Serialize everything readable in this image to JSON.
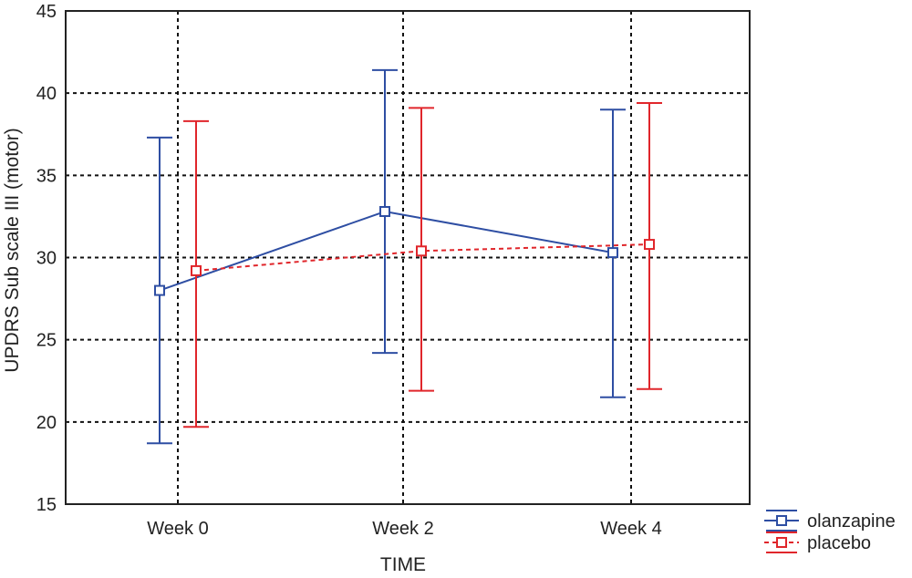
{
  "chart_data": {
    "type": "line",
    "title": "",
    "xlabel": "TIME",
    "ylabel": "UPDRS Sub scale III (motor)",
    "ylim": [
      15,
      45
    ],
    "yticks": [
      15,
      20,
      25,
      30,
      35,
      40,
      45
    ],
    "categories": [
      "Week 0",
      "Week 2",
      "Week 4"
    ],
    "grid": true,
    "legend_position": "bottom-right-outside",
    "series": [
      {
        "name": "olanzapine",
        "color": "#2e4ea3",
        "line_style": "solid",
        "marker": "open-square",
        "values": [
          28.0,
          32.8,
          30.3
        ],
        "lower": [
          18.7,
          24.2,
          21.5
        ],
        "upper": [
          37.3,
          41.4,
          39.0
        ]
      },
      {
        "name": "placebo",
        "color": "#e0262b",
        "line_style": "dashed",
        "marker": "open-square",
        "values": [
          29.2,
          30.4,
          30.8
        ],
        "lower": [
          19.7,
          21.9,
          22.0
        ],
        "upper": [
          38.3,
          39.1,
          39.4
        ]
      }
    ]
  }
}
